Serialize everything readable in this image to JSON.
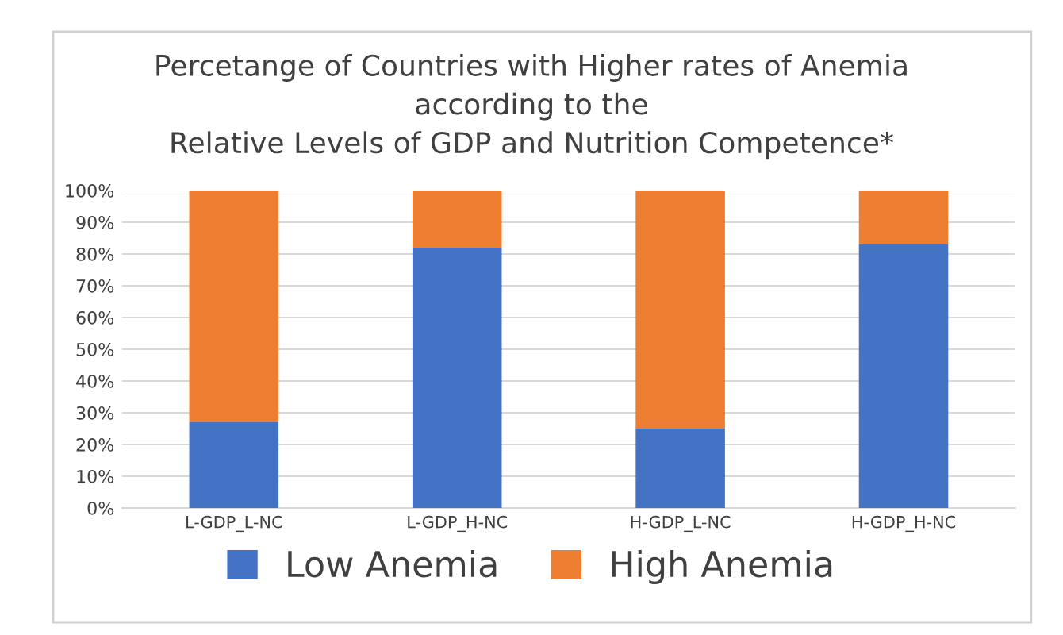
{
  "chart_data": {
    "type": "bar",
    "stacked": true,
    "title": "Percetange of Countries with Higher rates of Anemia\naccording to the\nRelative Levels of GDP and Nutrition Competence*",
    "categories": [
      "L-GDP_L-NC",
      "L-GDP_H-NC",
      "H-GDP_L-NC",
      "H-GDP_H-NC"
    ],
    "series": [
      {
        "name": "Low Anemia",
        "color": "#4472c4",
        "values": [
          27,
          82,
          25,
          83
        ]
      },
      {
        "name": "High Anemia",
        "color": "#ed7d31",
        "values": [
          73,
          18,
          75,
          17
        ]
      }
    ],
    "ylim": [
      0,
      100
    ],
    "yticks": [
      {
        "value": 0,
        "label": "0%"
      },
      {
        "value": 10,
        "label": "10%"
      },
      {
        "value": 20,
        "label": "20%"
      },
      {
        "value": 30,
        "label": "30%"
      },
      {
        "value": 40,
        "label": "40%"
      },
      {
        "value": 50,
        "label": "50%"
      },
      {
        "value": 60,
        "label": "60%"
      },
      {
        "value": 70,
        "label": "70%"
      },
      {
        "value": 80,
        "label": "80%"
      },
      {
        "value": 90,
        "label": "90%"
      },
      {
        "value": 100,
        "label": "100%"
      }
    ],
    "grid": "y",
    "legend": "bottom"
  }
}
